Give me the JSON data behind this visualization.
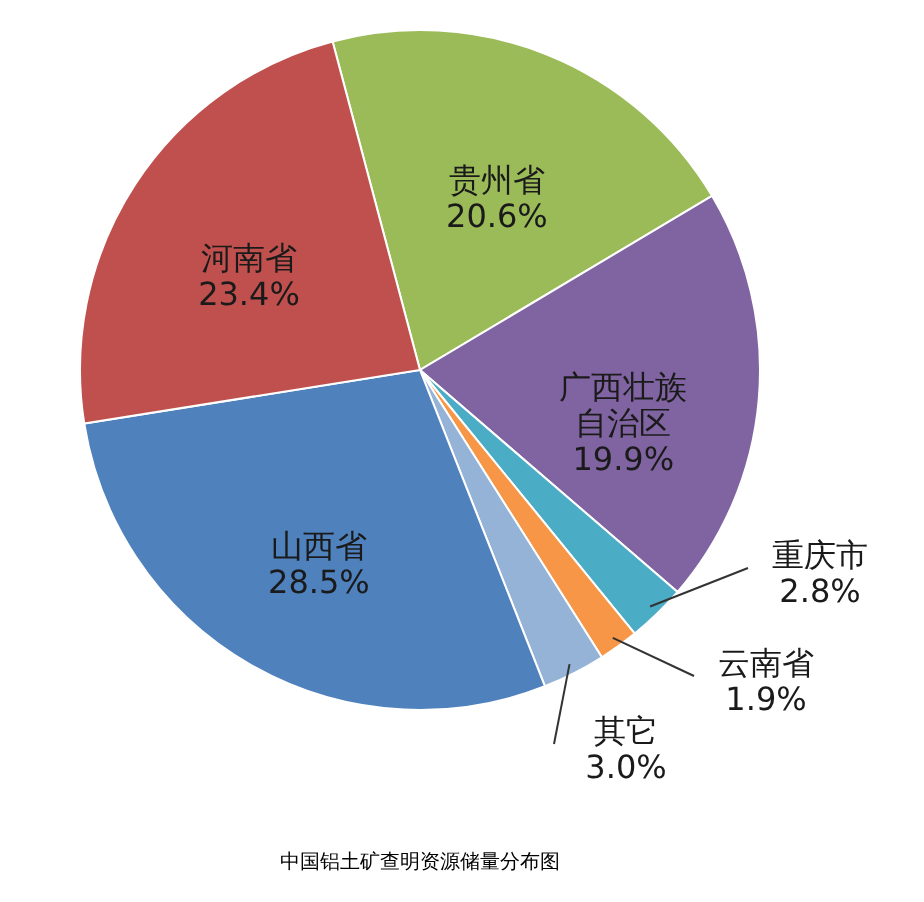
{
  "chart_data": {
    "type": "pie",
    "title": "中国铝土矿查明资源储量分布图",
    "categories": [
      "贵州省",
      "广西壮族自治区",
      "重庆市",
      "云南省",
      "其它",
      "山西省",
      "河南省"
    ],
    "values": [
      20.6,
      19.9,
      2.8,
      1.9,
      3.0,
      28.5,
      23.4
    ],
    "colors": [
      "#9bbb59",
      "#8064a2",
      "#4bacc6",
      "#f79646",
      "#95b3d7",
      "#4f81bd",
      "#c0504d"
    ],
    "value_labels": [
      "20.6%",
      "19.9%",
      "2.8%",
      "1.9%",
      "3.0%",
      "28.5%",
      "23.4%"
    ]
  }
}
